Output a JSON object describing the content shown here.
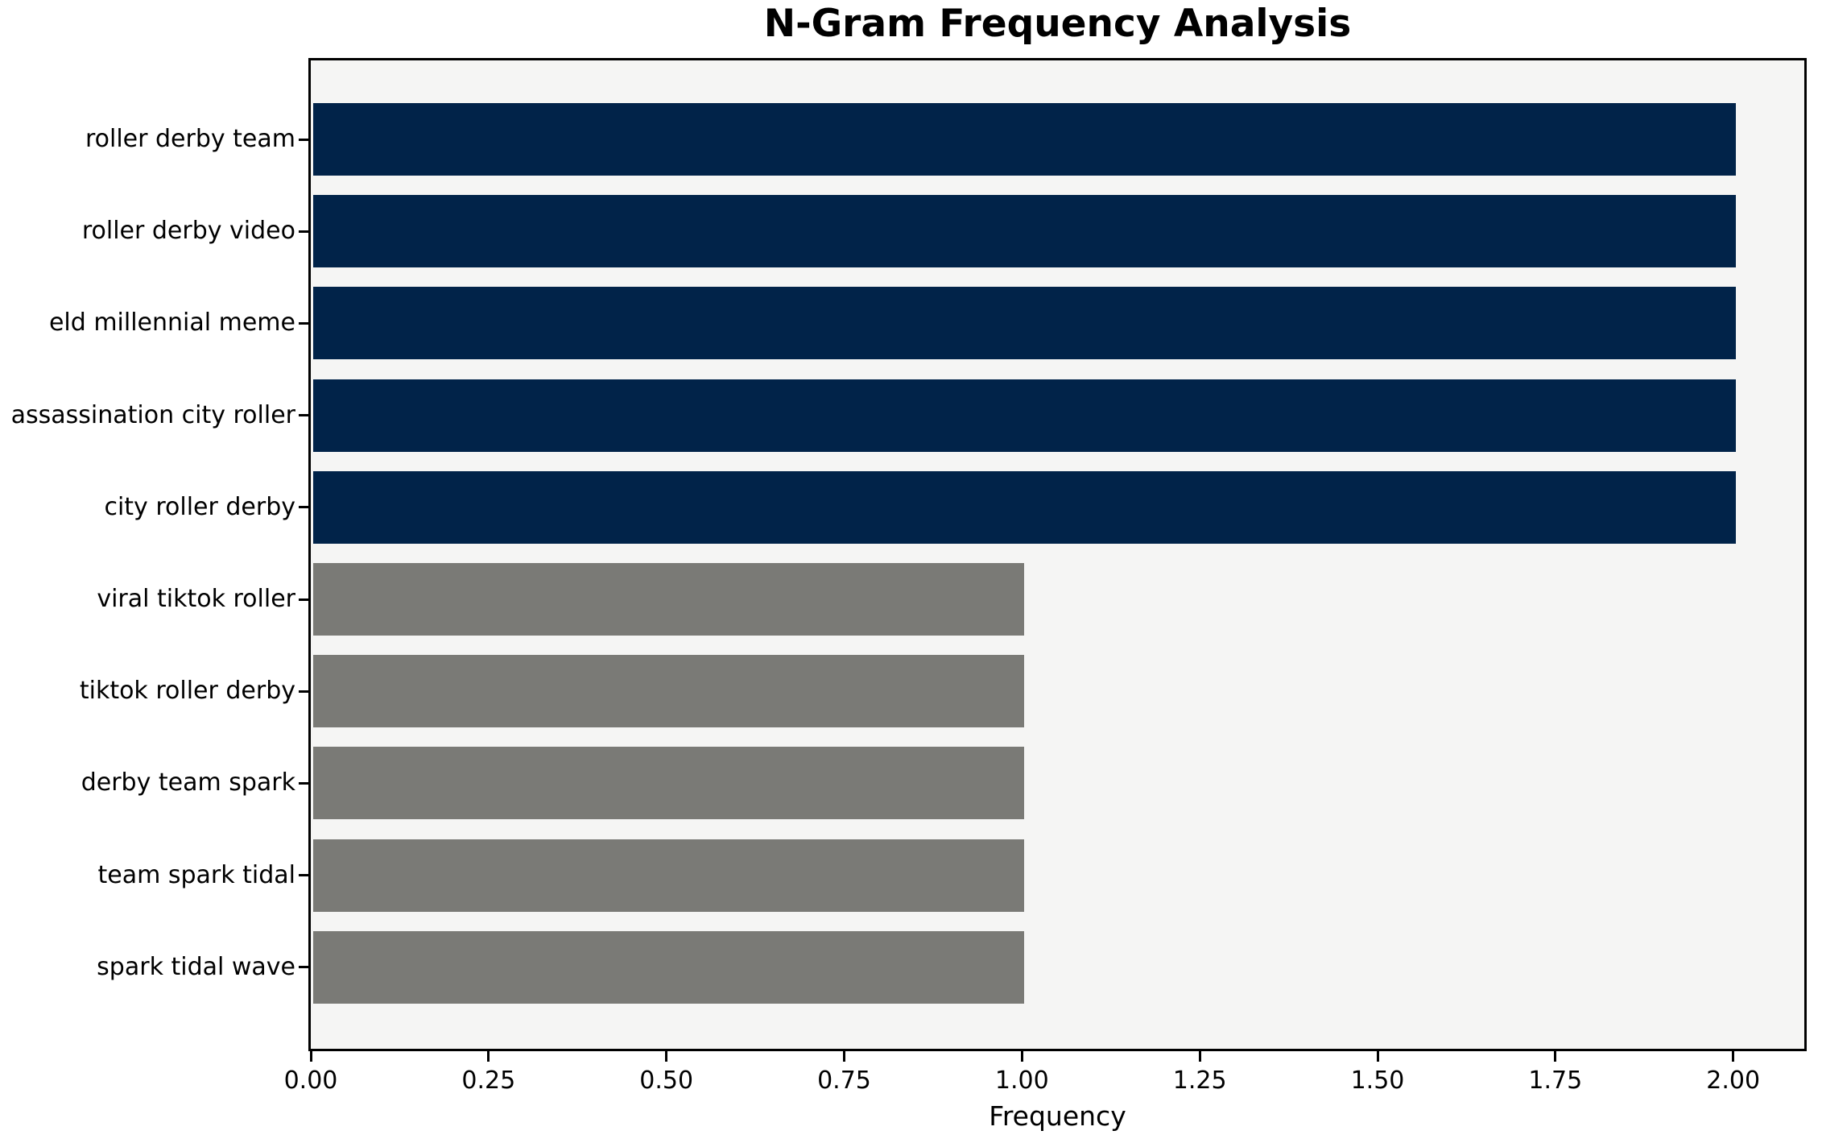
{
  "chart_data": {
    "type": "bar",
    "orientation": "horizontal",
    "title": "N-Gram Frequency Analysis",
    "xlabel": "Frequency",
    "ylabel": "",
    "categories": [
      "roller derby team",
      "roller derby video",
      "eld millennial meme",
      "assassination city roller",
      "city roller derby",
      "viral tiktok roller",
      "tiktok roller derby",
      "derby team spark",
      "team spark tidal",
      "spark tidal wave"
    ],
    "values": [
      2,
      2,
      2,
      2,
      2,
      1,
      1,
      1,
      1,
      1
    ],
    "bar_colors": [
      "#012349",
      "#012349",
      "#012349",
      "#012349",
      "#012349",
      "#7a7a76",
      "#7a7a76",
      "#7a7a76",
      "#7a7a76",
      "#7a7a76"
    ],
    "xlim": [
      0,
      2.1
    ],
    "xticks": [
      0,
      0.25,
      0.5,
      0.75,
      1.0,
      1.25,
      1.5,
      1.75,
      2.0
    ],
    "xtick_labels": [
      "0.00",
      "0.25",
      "0.50",
      "0.75",
      "1.00",
      "1.25",
      "1.50",
      "1.75",
      "2.00"
    ],
    "grid": false,
    "legend": false,
    "colors": {
      "highlight_bar": "#012349",
      "regular_bar": "#7a7a76",
      "plot_background": "#f5f5f4",
      "figure_background": "#ffffff",
      "spine": "#000000",
      "text": "#000000"
    }
  }
}
